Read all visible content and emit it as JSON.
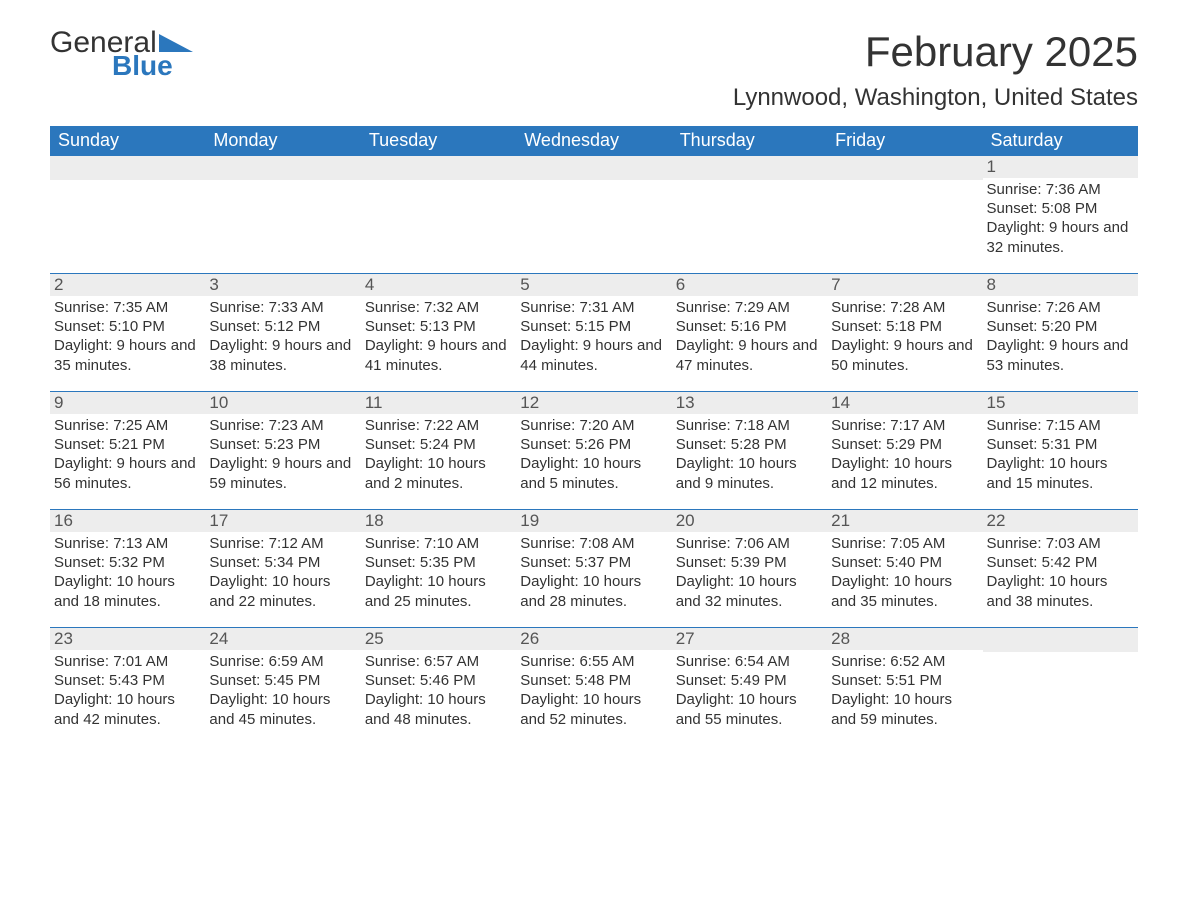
{
  "logo": {
    "text_main": "General",
    "text_sub": "Blue",
    "flag_color": "#2b77bd"
  },
  "title": "February 2025",
  "subtitle": "Lynnwood, Washington, United States",
  "colors": {
    "header_bg": "#2b77bd",
    "header_text": "#ffffff",
    "daynum_bg": "#ededed",
    "border": "#2b77bd",
    "body_text": "#333333"
  },
  "weekdays": [
    "Sunday",
    "Monday",
    "Tuesday",
    "Wednesday",
    "Thursday",
    "Friday",
    "Saturday"
  ],
  "weeks": [
    [
      null,
      null,
      null,
      null,
      null,
      null,
      {
        "n": "1",
        "sunrise": "Sunrise: 7:36 AM",
        "sunset": "Sunset: 5:08 PM",
        "daylight": "Daylight: 9 hours and 32 minutes."
      }
    ],
    [
      {
        "n": "2",
        "sunrise": "Sunrise: 7:35 AM",
        "sunset": "Sunset: 5:10 PM",
        "daylight": "Daylight: 9 hours and 35 minutes."
      },
      {
        "n": "3",
        "sunrise": "Sunrise: 7:33 AM",
        "sunset": "Sunset: 5:12 PM",
        "daylight": "Daylight: 9 hours and 38 minutes."
      },
      {
        "n": "4",
        "sunrise": "Sunrise: 7:32 AM",
        "sunset": "Sunset: 5:13 PM",
        "daylight": "Daylight: 9 hours and 41 minutes."
      },
      {
        "n": "5",
        "sunrise": "Sunrise: 7:31 AM",
        "sunset": "Sunset: 5:15 PM",
        "daylight": "Daylight: 9 hours and 44 minutes."
      },
      {
        "n": "6",
        "sunrise": "Sunrise: 7:29 AM",
        "sunset": "Sunset: 5:16 PM",
        "daylight": "Daylight: 9 hours and 47 minutes."
      },
      {
        "n": "7",
        "sunrise": "Sunrise: 7:28 AM",
        "sunset": "Sunset: 5:18 PM",
        "daylight": "Daylight: 9 hours and 50 minutes."
      },
      {
        "n": "8",
        "sunrise": "Sunrise: 7:26 AM",
        "sunset": "Sunset: 5:20 PM",
        "daylight": "Daylight: 9 hours and 53 minutes."
      }
    ],
    [
      {
        "n": "9",
        "sunrise": "Sunrise: 7:25 AM",
        "sunset": "Sunset: 5:21 PM",
        "daylight": "Daylight: 9 hours and 56 minutes."
      },
      {
        "n": "10",
        "sunrise": "Sunrise: 7:23 AM",
        "sunset": "Sunset: 5:23 PM",
        "daylight": "Daylight: 9 hours and 59 minutes."
      },
      {
        "n": "11",
        "sunrise": "Sunrise: 7:22 AM",
        "sunset": "Sunset: 5:24 PM",
        "daylight": "Daylight: 10 hours and 2 minutes."
      },
      {
        "n": "12",
        "sunrise": "Sunrise: 7:20 AM",
        "sunset": "Sunset: 5:26 PM",
        "daylight": "Daylight: 10 hours and 5 minutes."
      },
      {
        "n": "13",
        "sunrise": "Sunrise: 7:18 AM",
        "sunset": "Sunset: 5:28 PM",
        "daylight": "Daylight: 10 hours and 9 minutes."
      },
      {
        "n": "14",
        "sunrise": "Sunrise: 7:17 AM",
        "sunset": "Sunset: 5:29 PM",
        "daylight": "Daylight: 10 hours and 12 minutes."
      },
      {
        "n": "15",
        "sunrise": "Sunrise: 7:15 AM",
        "sunset": "Sunset: 5:31 PM",
        "daylight": "Daylight: 10 hours and 15 minutes."
      }
    ],
    [
      {
        "n": "16",
        "sunrise": "Sunrise: 7:13 AM",
        "sunset": "Sunset: 5:32 PM",
        "daylight": "Daylight: 10 hours and 18 minutes."
      },
      {
        "n": "17",
        "sunrise": "Sunrise: 7:12 AM",
        "sunset": "Sunset: 5:34 PM",
        "daylight": "Daylight: 10 hours and 22 minutes."
      },
      {
        "n": "18",
        "sunrise": "Sunrise: 7:10 AM",
        "sunset": "Sunset: 5:35 PM",
        "daylight": "Daylight: 10 hours and 25 minutes."
      },
      {
        "n": "19",
        "sunrise": "Sunrise: 7:08 AM",
        "sunset": "Sunset: 5:37 PM",
        "daylight": "Daylight: 10 hours and 28 minutes."
      },
      {
        "n": "20",
        "sunrise": "Sunrise: 7:06 AM",
        "sunset": "Sunset: 5:39 PM",
        "daylight": "Daylight: 10 hours and 32 minutes."
      },
      {
        "n": "21",
        "sunrise": "Sunrise: 7:05 AM",
        "sunset": "Sunset: 5:40 PM",
        "daylight": "Daylight: 10 hours and 35 minutes."
      },
      {
        "n": "22",
        "sunrise": "Sunrise: 7:03 AM",
        "sunset": "Sunset: 5:42 PM",
        "daylight": "Daylight: 10 hours and 38 minutes."
      }
    ],
    [
      {
        "n": "23",
        "sunrise": "Sunrise: 7:01 AM",
        "sunset": "Sunset: 5:43 PM",
        "daylight": "Daylight: 10 hours and 42 minutes."
      },
      {
        "n": "24",
        "sunrise": "Sunrise: 6:59 AM",
        "sunset": "Sunset: 5:45 PM",
        "daylight": "Daylight: 10 hours and 45 minutes."
      },
      {
        "n": "25",
        "sunrise": "Sunrise: 6:57 AM",
        "sunset": "Sunset: 5:46 PM",
        "daylight": "Daylight: 10 hours and 48 minutes."
      },
      {
        "n": "26",
        "sunrise": "Sunrise: 6:55 AM",
        "sunset": "Sunset: 5:48 PM",
        "daylight": "Daylight: 10 hours and 52 minutes."
      },
      {
        "n": "27",
        "sunrise": "Sunrise: 6:54 AM",
        "sunset": "Sunset: 5:49 PM",
        "daylight": "Daylight: 10 hours and 55 minutes."
      },
      {
        "n": "28",
        "sunrise": "Sunrise: 6:52 AM",
        "sunset": "Sunset: 5:51 PM",
        "daylight": "Daylight: 10 hours and 59 minutes."
      },
      null
    ]
  ]
}
